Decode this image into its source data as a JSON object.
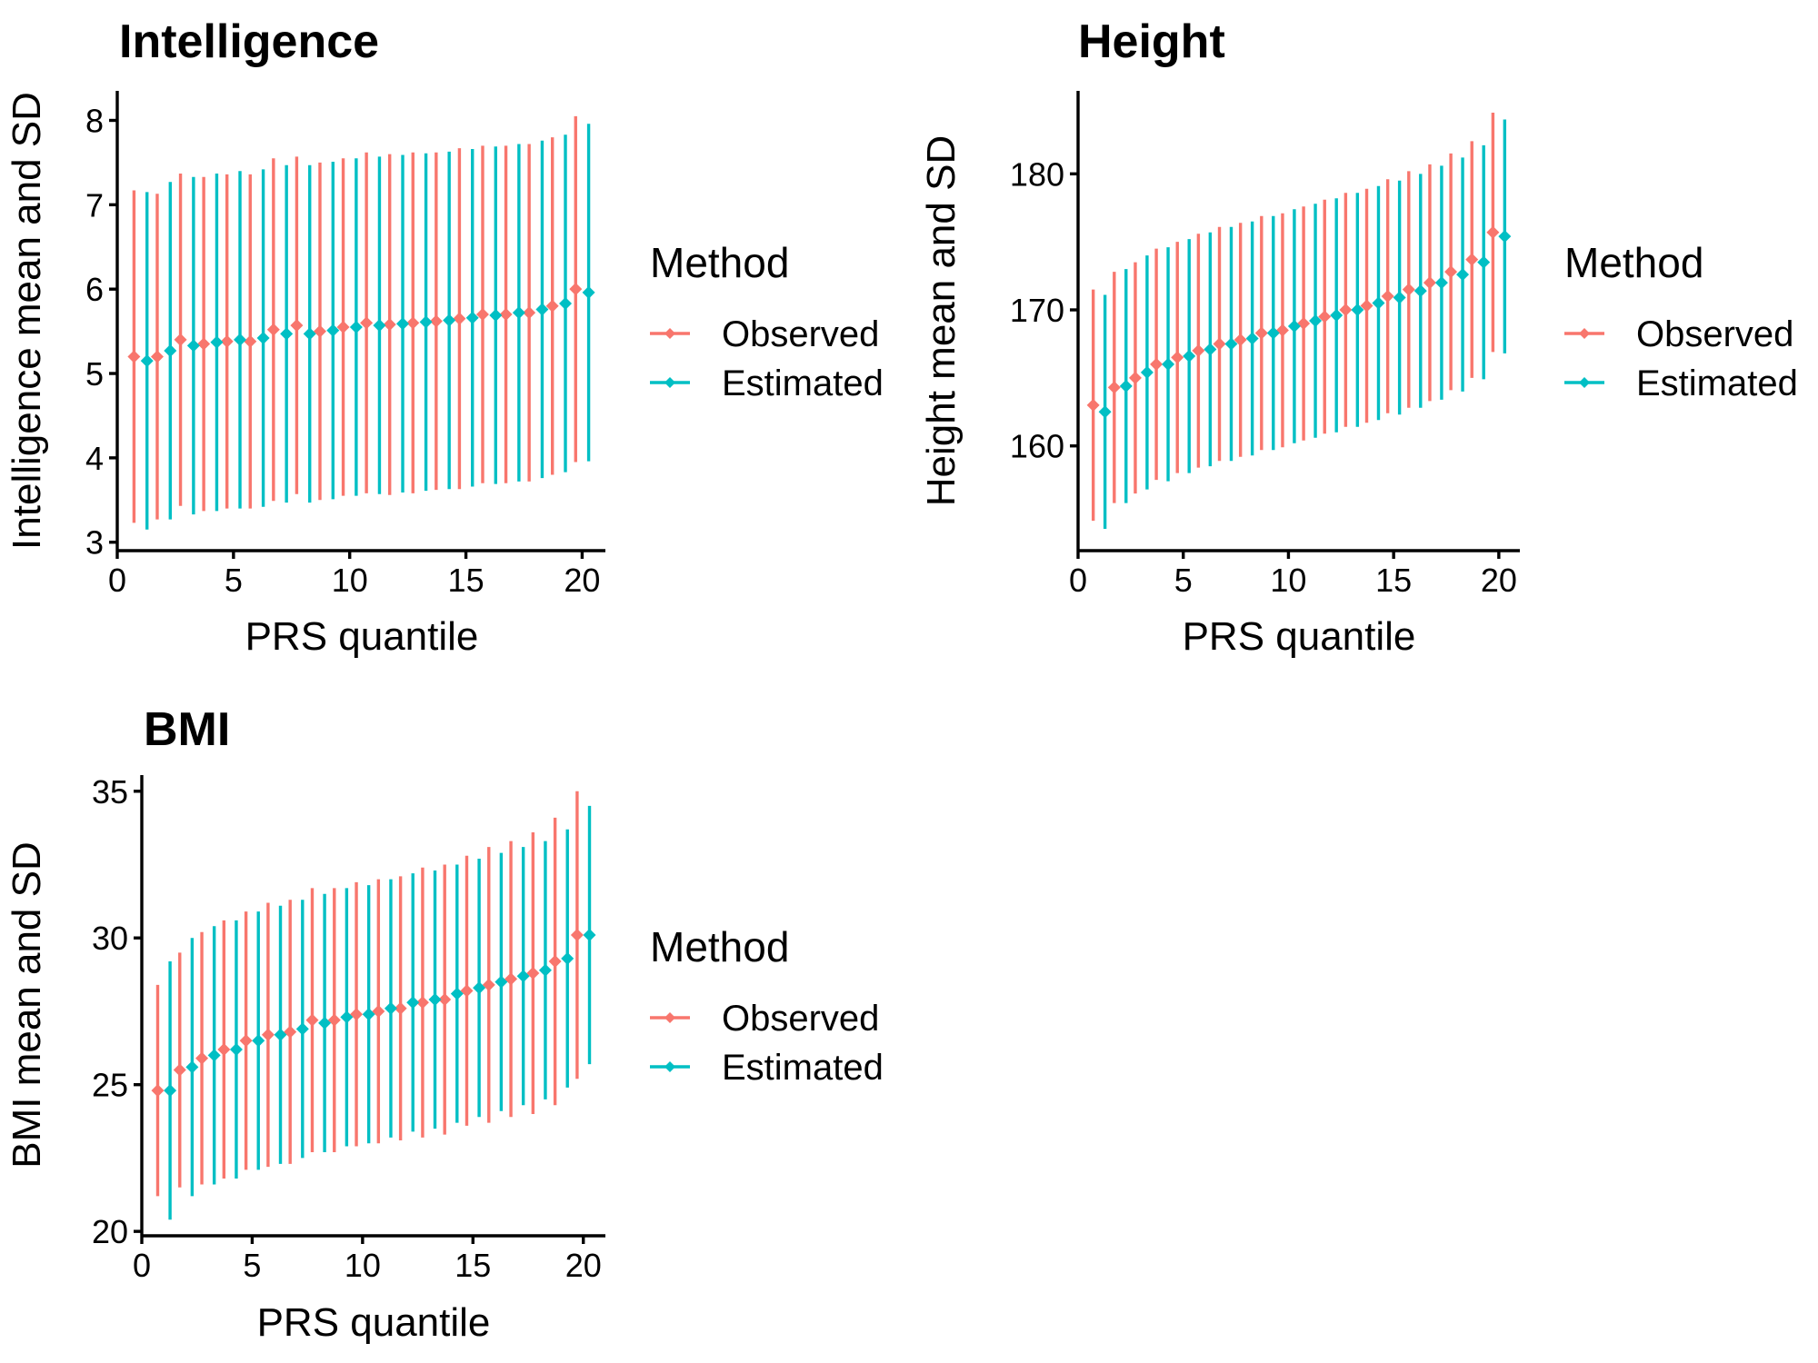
{
  "colors": {
    "Observed": "#F8766D",
    "Estimated": "#00BFC4"
  },
  "legend": {
    "title": "Method",
    "items": [
      "Observed",
      "Estimated"
    ]
  },
  "chart_data": [
    {
      "type": "errorbar",
      "title": "Intelligence",
      "xlabel": "PRS quantile",
      "ylabel": "Intelligence mean and SD",
      "xlim": [
        0,
        21
      ],
      "ylim": [
        2.9,
        8.35
      ],
      "xticks": [
        0,
        5,
        10,
        15,
        20
      ],
      "yticks": [
        3,
        4,
        5,
        6,
        7,
        8
      ],
      "x": [
        1,
        2,
        3,
        4,
        5,
        6,
        7,
        8,
        9,
        10,
        11,
        12,
        13,
        14,
        15,
        16,
        17,
        18,
        19,
        20
      ],
      "series": [
        {
          "name": "Observed",
          "mean": [
            5.2,
            5.2,
            5.4,
            5.35,
            5.38,
            5.38,
            5.52,
            5.57,
            5.5,
            5.55,
            5.6,
            5.58,
            5.6,
            5.62,
            5.65,
            5.7,
            5.7,
            5.72,
            5.8,
            6.0
          ],
          "sd": [
            1.97,
            1.93,
            1.97,
            1.98,
            1.98,
            1.98,
            2.03,
            2.0,
            2.0,
            2.0,
            2.02,
            2.02,
            2.02,
            2.0,
            2.02,
            2.0,
            2.0,
            2.0,
            2.0,
            2.05
          ]
        },
        {
          "name": "Estimated",
          "mean": [
            5.15,
            5.27,
            5.33,
            5.37,
            5.4,
            5.42,
            5.47,
            5.47,
            5.51,
            5.55,
            5.57,
            5.59,
            5.61,
            5.63,
            5.66,
            5.69,
            5.72,
            5.76,
            5.83,
            5.96
          ],
          "sd": [
            2.0,
            2.0,
            2.0,
            2.0,
            2.0,
            2.0,
            2.0,
            2.0,
            2.0,
            2.0,
            2.0,
            2.0,
            2.0,
            2.0,
            2.0,
            2.0,
            2.0,
            2.0,
            2.0,
            2.0
          ]
        }
      ]
    },
    {
      "type": "errorbar",
      "title": "Height",
      "xlabel": "PRS quantile",
      "ylabel": "Height mean and SD",
      "xlim": [
        0,
        21
      ],
      "ylim": [
        152.3,
        186.1
      ],
      "xticks": [
        0,
        5,
        10,
        15,
        20
      ],
      "yticks": [
        160,
        170,
        180
      ],
      "x": [
        1,
        2,
        3,
        4,
        5,
        6,
        7,
        8,
        9,
        10,
        11,
        12,
        13,
        14,
        15,
        16,
        17,
        18,
        19,
        20
      ],
      "series": [
        {
          "name": "Observed",
          "mean": [
            163.0,
            164.3,
            165.0,
            166.0,
            166.5,
            167.0,
            167.5,
            167.8,
            168.3,
            168.5,
            169.0,
            169.5,
            170.0,
            170.3,
            171.0,
            171.5,
            172.0,
            172.8,
            173.7,
            175.7
          ],
          "sd": [
            8.5,
            8.5,
            8.5,
            8.5,
            8.5,
            8.6,
            8.6,
            8.6,
            8.6,
            8.6,
            8.6,
            8.6,
            8.6,
            8.6,
            8.6,
            8.7,
            8.7,
            8.7,
            8.7,
            8.8
          ]
        },
        {
          "name": "Estimated",
          "mean": [
            162.5,
            164.4,
            165.4,
            166.0,
            166.6,
            167.1,
            167.5,
            167.9,
            168.3,
            168.8,
            169.2,
            169.6,
            170.0,
            170.5,
            170.9,
            171.4,
            172.0,
            172.6,
            173.5,
            175.4
          ],
          "sd": [
            8.6,
            8.6,
            8.6,
            8.6,
            8.6,
            8.6,
            8.6,
            8.6,
            8.6,
            8.6,
            8.6,
            8.6,
            8.6,
            8.6,
            8.6,
            8.6,
            8.6,
            8.6,
            8.6,
            8.6
          ]
        }
      ]
    },
    {
      "type": "errorbar",
      "title": "BMI",
      "xlabel": "PRS quantile",
      "ylabel": "BMI mean and SD",
      "xlim": [
        0,
        21
      ],
      "ylim": [
        19.85,
        35.55
      ],
      "xticks": [
        0,
        5,
        10,
        15,
        20
      ],
      "yticks": [
        20,
        25,
        30,
        35
      ],
      "x": [
        1,
        2,
        3,
        4,
        5,
        6,
        7,
        8,
        9,
        10,
        11,
        12,
        13,
        14,
        15,
        16,
        17,
        18,
        19,
        20
      ],
      "series": [
        {
          "name": "Observed",
          "mean": [
            24.8,
            25.5,
            25.9,
            26.2,
            26.5,
            26.7,
            26.8,
            27.2,
            27.2,
            27.4,
            27.5,
            27.6,
            27.8,
            27.9,
            28.2,
            28.4,
            28.6,
            28.8,
            29.2,
            30.1
          ],
          "sd": [
            3.6,
            4.0,
            4.3,
            4.4,
            4.4,
            4.5,
            4.5,
            4.5,
            4.5,
            4.5,
            4.5,
            4.5,
            4.6,
            4.6,
            4.6,
            4.7,
            4.7,
            4.8,
            4.9,
            4.9
          ]
        },
        {
          "name": "Estimated",
          "mean": [
            24.8,
            25.6,
            26.0,
            26.2,
            26.5,
            26.7,
            26.9,
            27.1,
            27.3,
            27.4,
            27.6,
            27.8,
            27.9,
            28.1,
            28.3,
            28.5,
            28.7,
            28.9,
            29.3,
            30.1
          ],
          "sd": [
            4.4,
            4.4,
            4.4,
            4.4,
            4.4,
            4.4,
            4.4,
            4.4,
            4.4,
            4.4,
            4.4,
            4.4,
            4.4,
            4.4,
            4.4,
            4.4,
            4.4,
            4.4,
            4.4,
            4.4
          ]
        }
      ]
    }
  ]
}
